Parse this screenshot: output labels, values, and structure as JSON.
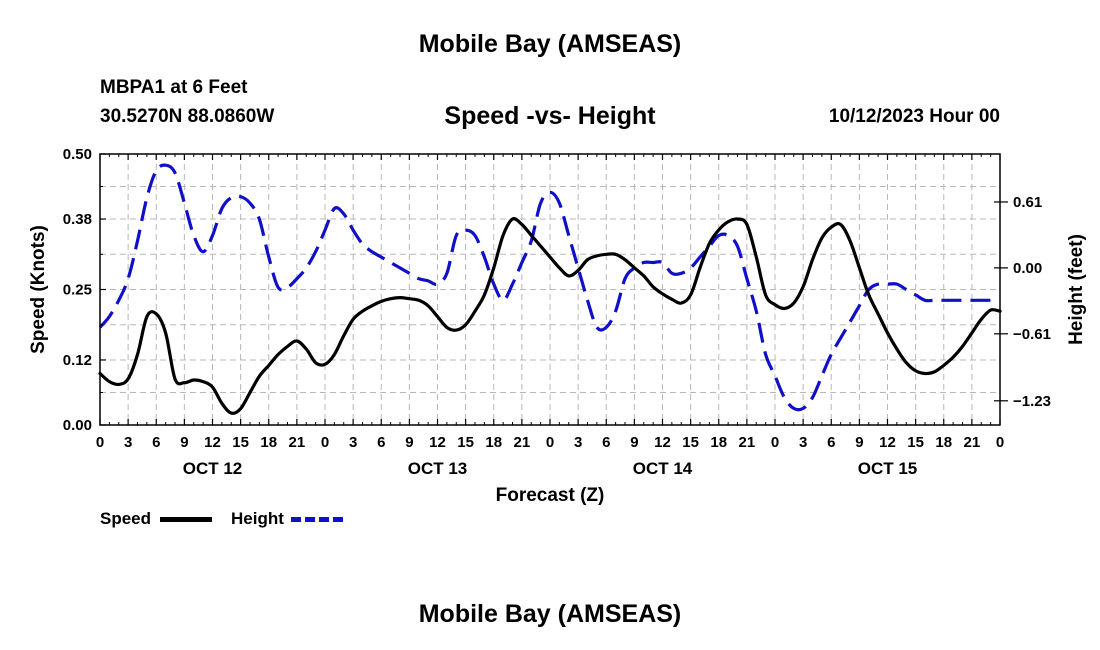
{
  "page": {
    "top_title": "Mobile Bay (AMSEAS)",
    "bottom_title": "Mobile Bay (AMSEAS)",
    "station_line": "MBPA1 at 6 Feet",
    "coords_line": "30.5270N  88.0860W",
    "datetime": "10/12/2023 Hour 00"
  },
  "legend": {
    "speed": {
      "label": "Speed",
      "color": "#000000"
    },
    "height": {
      "label": "Height",
      "color": "#1010c8"
    }
  },
  "chart_data": {
    "type": "line",
    "title": "Speed -vs- Height",
    "xlabel": "Forecast (Z)",
    "ylabel": "Speed (Knots)",
    "y2label": "Height (feet)",
    "xlim": [
      0,
      96
    ],
    "ylim": [
      0,
      0.5
    ],
    "y2lim": [
      -1.454,
      1.054
    ],
    "x_tick_labels": [
      "0",
      "3",
      "6",
      "9",
      "12",
      "15",
      "18",
      "21",
      "0",
      "3",
      "6",
      "9",
      "12",
      "15",
      "18",
      "21",
      "0",
      "3",
      "6",
      "9",
      "12",
      "15",
      "18",
      "21",
      "0",
      "3",
      "6",
      "9",
      "12",
      "15",
      "18",
      "21",
      "0"
    ],
    "day_labels": [
      {
        "x": 12,
        "label": "OCT 12"
      },
      {
        "x": 36,
        "label": "OCT 13"
      },
      {
        "x": 60,
        "label": "OCT 14"
      },
      {
        "x": 84,
        "label": "OCT 15"
      }
    ],
    "y_ticks": [
      0.0,
      0.12,
      0.25,
      0.38,
      0.5
    ],
    "y_tick_labels": [
      "0.00",
      "0.12",
      "0.25",
      "0.38",
      "0.50"
    ],
    "y2_ticks": [
      -1.23,
      -0.61,
      0.0,
      0.61
    ],
    "y2_tick_labels": [
      "−1.23",
      "−0.61",
      "0.00",
      "0.61"
    ],
    "grid": true,
    "series": [
      {
        "name": "Speed",
        "axis": "left",
        "color": "#000000",
        "dash": "solid",
        "x": [
          0,
          1,
          2,
          3,
          4,
          5,
          6,
          7,
          8,
          9,
          10,
          11,
          12,
          13,
          14,
          15,
          16,
          17,
          18,
          19,
          20,
          21,
          22,
          23,
          24,
          25,
          26,
          27,
          28,
          29,
          30,
          31,
          32,
          33,
          34,
          35,
          36,
          37,
          38,
          39,
          40,
          41,
          42,
          43,
          44,
          45,
          46,
          47,
          48,
          49,
          50,
          51,
          52,
          53,
          54,
          55,
          56,
          57,
          58,
          59,
          60,
          61,
          62,
          63,
          64,
          65,
          66,
          67,
          68,
          69,
          70,
          71,
          72,
          73,
          74,
          75,
          76,
          77,
          78,
          79,
          80,
          81,
          82,
          83,
          84,
          85,
          86,
          87,
          88,
          89,
          90,
          91,
          92,
          93,
          94,
          95,
          96
        ],
        "values": [
          0.095,
          0.08,
          0.075,
          0.085,
          0.13,
          0.2,
          0.205,
          0.17,
          0.085,
          0.078,
          0.083,
          0.08,
          0.07,
          0.04,
          0.022,
          0.03,
          0.06,
          0.09,
          0.11,
          0.13,
          0.145,
          0.155,
          0.14,
          0.115,
          0.112,
          0.13,
          0.165,
          0.195,
          0.21,
          0.22,
          0.228,
          0.233,
          0.235,
          0.233,
          0.23,
          0.22,
          0.2,
          0.18,
          0.175,
          0.185,
          0.21,
          0.24,
          0.29,
          0.35,
          0.38,
          0.37,
          0.35,
          0.33,
          0.31,
          0.29,
          0.275,
          0.285,
          0.305,
          0.312,
          0.315,
          0.315,
          0.305,
          0.29,
          0.275,
          0.255,
          0.242,
          0.232,
          0.225,
          0.24,
          0.29,
          0.335,
          0.36,
          0.375,
          0.38,
          0.37,
          0.31,
          0.24,
          0.222,
          0.215,
          0.225,
          0.255,
          0.305,
          0.345,
          0.365,
          0.37,
          0.34,
          0.29,
          0.24,
          0.205,
          0.17,
          0.14,
          0.115,
          0.1,
          0.095,
          0.098,
          0.11,
          0.125,
          0.145,
          0.17,
          0.195,
          0.212,
          0.21
        ]
      },
      {
        "name": "Height",
        "axis": "right",
        "color": "#1010c8",
        "dash": "dashed",
        "x": [
          0,
          1,
          2,
          3,
          4,
          5,
          6,
          7,
          8,
          9,
          10,
          11,
          12,
          13,
          14,
          15,
          16,
          17,
          18,
          19,
          20,
          21,
          22,
          23,
          24,
          25,
          26,
          27,
          28,
          29,
          30,
          31,
          32,
          33,
          34,
          35,
          36,
          37,
          38,
          39,
          40,
          41,
          42,
          43,
          44,
          45,
          46,
          47,
          48,
          49,
          50,
          51,
          52,
          53,
          54,
          55,
          56,
          57,
          58,
          59,
          60,
          61,
          62,
          63,
          64,
          65,
          66,
          67,
          68,
          69,
          70,
          71,
          72,
          73,
          74,
          75,
          76,
          77,
          78,
          79,
          80,
          81,
          82,
          83,
          84,
          85,
          86,
          87,
          88,
          89,
          90,
          91,
          92,
          93,
          94,
          95,
          96
        ],
        "values": [
          -0.55,
          -0.45,
          -0.3,
          -0.1,
          0.25,
          0.65,
          0.9,
          0.95,
          0.88,
          0.6,
          0.3,
          0.15,
          0.3,
          0.55,
          0.65,
          0.66,
          0.6,
          0.45,
          0.1,
          -0.18,
          -0.18,
          -0.1,
          0.0,
          0.15,
          0.35,
          0.55,
          0.5,
          0.35,
          0.22,
          0.15,
          0.1,
          0.05,
          0.0,
          -0.05,
          -0.1,
          -0.12,
          -0.15,
          -0.05,
          0.3,
          0.35,
          0.3,
          0.1,
          -0.15,
          -0.3,
          -0.15,
          0.05,
          0.25,
          0.6,
          0.7,
          0.6,
          0.3,
          0.0,
          -0.3,
          -0.55,
          -0.55,
          -0.4,
          -0.1,
          0.0,
          0.05,
          0.05,
          0.05,
          -0.05,
          -0.05,
          0.0,
          0.1,
          0.2,
          0.3,
          0.3,
          0.2,
          -0.1,
          -0.4,
          -0.8,
          -1.0,
          -1.2,
          -1.3,
          -1.3,
          -1.2,
          -1.0,
          -0.8,
          -0.65,
          -0.5,
          -0.35,
          -0.2,
          -0.15,
          -0.15,
          -0.15,
          -0.2,
          -0.25,
          -0.3,
          -0.3,
          -0.3,
          -0.3,
          -0.3,
          -0.3,
          -0.3,
          -0.3,
          -0.3
        ]
      }
    ]
  }
}
